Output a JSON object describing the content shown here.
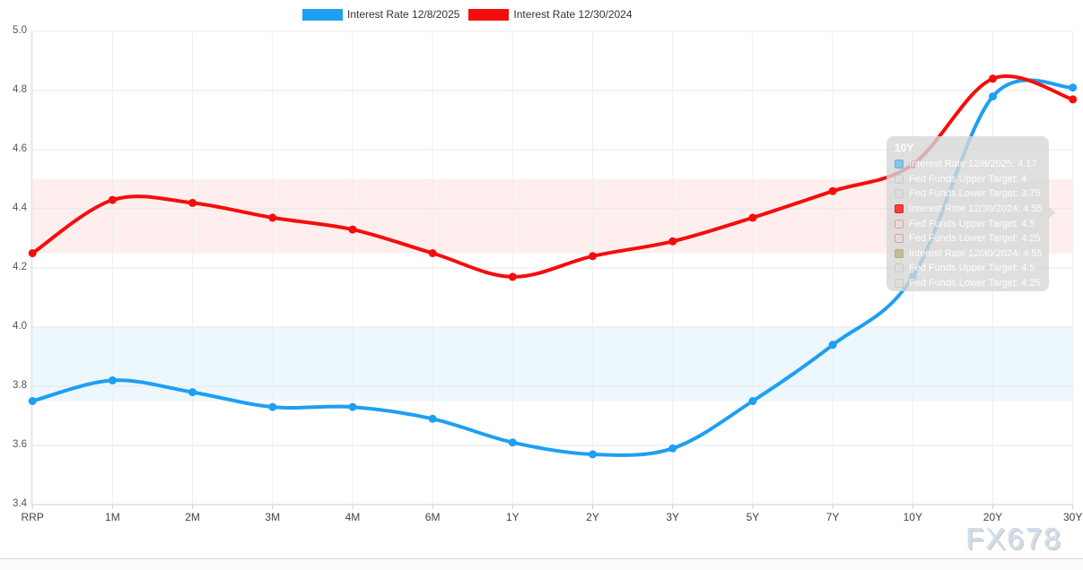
{
  "legend": [
    {
      "label": "Interest Rate 12/8/2025",
      "color": "#1e9ff2"
    },
    {
      "label": "Interest Rate 12/30/2024",
      "color": "#f50d0d"
    }
  ],
  "watermark": "FX678",
  "chart_data": {
    "type": "line",
    "categories": [
      "RRP",
      "1M",
      "2M",
      "3M",
      "4M",
      "6M",
      "1Y",
      "2Y",
      "3Y",
      "5Y",
      "7Y",
      "10Y",
      "20Y",
      "30Y"
    ],
    "series": [
      {
        "name": "Interest Rate 12/8/2025",
        "color": "#1e9ff2",
        "values": [
          3.75,
          3.82,
          3.78,
          3.73,
          3.73,
          3.69,
          3.61,
          3.57,
          3.59,
          3.75,
          3.94,
          4.17,
          4.78,
          4.81
        ]
      },
      {
        "name": "Interest Rate 12/30/2024",
        "color": "#f50d0d",
        "values": [
          4.25,
          4.43,
          4.42,
          4.37,
          4.33,
          4.25,
          4.17,
          4.24,
          4.29,
          4.37,
          4.46,
          4.55,
          4.84,
          4.77
        ]
      }
    ],
    "bands": [
      {
        "name": "fed-funds-target-range-12-30-2024",
        "from": 4.25,
        "to": 4.5,
        "color": "rgba(245,13,13,0.07)"
      },
      {
        "name": "fed-funds-target-range-12-8-2025",
        "from": 3.75,
        "to": 4.0,
        "color": "rgba(30,159,242,0.08)"
      }
    ],
    "title": "",
    "xlabel": "",
    "ylabel": "",
    "ylim": [
      3.4,
      5.0
    ],
    "ytick_step": 0.2,
    "yticks": [
      "5.0",
      "4.8",
      "4.6",
      "4.4",
      "4.2",
      "4.0",
      "3.8",
      "3.6",
      "3.4"
    ],
    "grid": true,
    "legend_position": "top-center"
  },
  "tooltip": {
    "title": "10Y",
    "rows": [
      {
        "text": "Interest Rate 12/8/2025: 4.17",
        "swatch_fill": "rgba(30,159,242,0.45)",
        "swatch_border": "rgba(30,159,242,0.45)"
      },
      {
        "text": "Fed Funds Upper Target: 4",
        "swatch_fill": "transparent",
        "swatch_border": "rgba(150,190,225,0.45)"
      },
      {
        "text": "Fed Funds Lower Target: 3.75",
        "swatch_fill": "transparent",
        "swatch_border": "rgba(150,190,225,0.45)"
      },
      {
        "text": "Interest Rate 12/30/2024: 4.55",
        "swatch_fill": "rgba(245,13,13,0.75)",
        "swatch_border": "rgba(245,13,13,0.75)"
      },
      {
        "text": "Fed Funds Upper Target: 4.5",
        "swatch_fill": "transparent",
        "swatch_border": "rgba(245,13,13,0.30)"
      },
      {
        "text": "Fed Funds Lower Target: 4.25",
        "swatch_fill": "transparent",
        "swatch_border": "rgba(245,13,13,0.30)"
      },
      {
        "text": "Interest Rate 12/30/2024: 4.55",
        "swatch_fill": "rgba(172,162,94,0.55)",
        "swatch_border": "rgba(172,162,94,0.55)"
      },
      {
        "text": "Fed Funds Upper Target: 4.5",
        "swatch_fill": "transparent",
        "swatch_border": "rgba(180,185,120,0.45)"
      },
      {
        "text": "Fed Funds Lower Target: 4.25",
        "swatch_fill": "transparent",
        "swatch_border": "rgba(180,185,120,0.45)"
      }
    ]
  }
}
